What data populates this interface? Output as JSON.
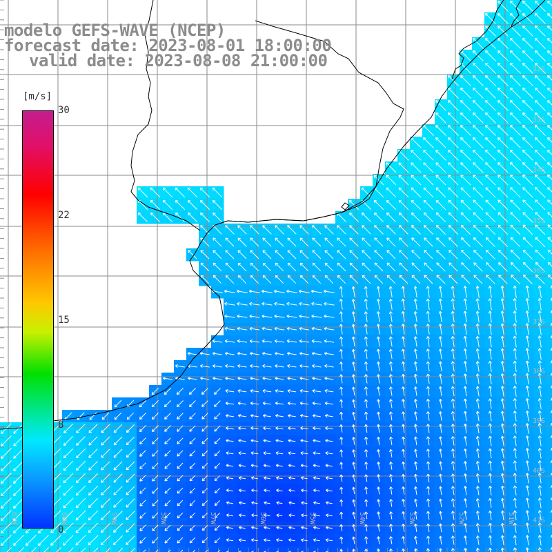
{
  "title": {
    "line1": "modelo GEFS-WAVE (NCEP)",
    "line2": "forecast date: 2023-08-01 18:00:00",
    "line3": "valid date: 2023-08-08 21:00:00"
  },
  "colorbar": {
    "unit": "[m/s]",
    "labels": [
      "30",
      "22",
      "15",
      "8",
      "0"
    ],
    "min": 0,
    "max": 30
  },
  "axes": {
    "lat_labels": [
      "32S",
      "33S",
      "34S",
      "35S",
      "36S",
      "37S",
      "38S",
      "39S",
      "40S",
      "41S"
    ],
    "lon_labels": [
      "61W",
      "60W",
      "59W",
      "58W",
      "57W",
      "56W",
      "55W",
      "54W",
      "53W",
      "52W",
      "51W"
    ]
  },
  "colors": {
    "land": "#ffffff",
    "coastline": "#000000",
    "grid": "#8a8a8a",
    "vector": "#ffffff",
    "title_text": "#8c8c8c"
  }
}
